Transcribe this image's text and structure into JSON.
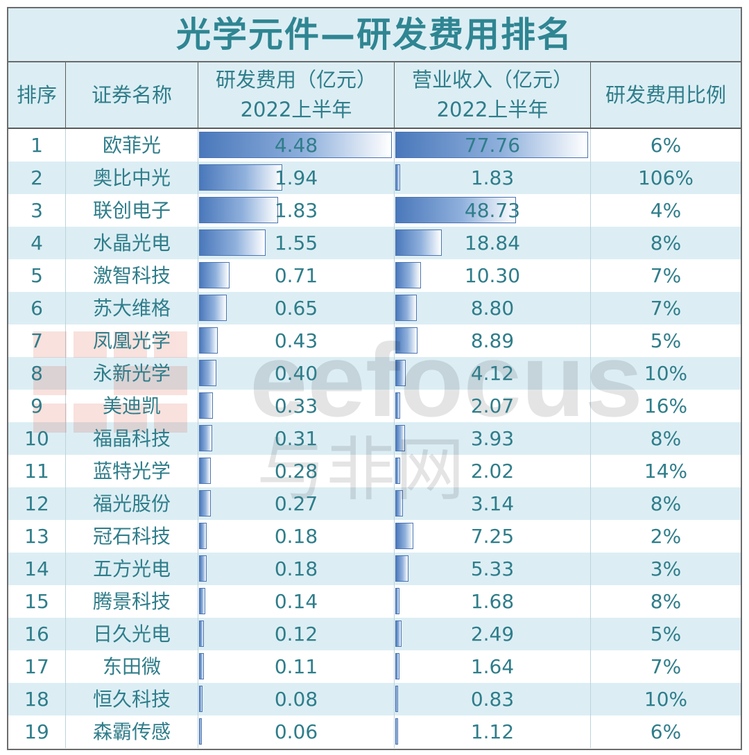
{
  "title": "光学元件—研发费用排名",
  "header": {
    "rank": "排序",
    "name": "证券名称",
    "rd_line1": "研发费用（亿元）",
    "rd_line2": "2022上半年",
    "rev_line1": "营业收入（亿元）",
    "rev_line2": "2022上半年",
    "ratio": "研发费用比例"
  },
  "rows": [
    {
      "rank": "1",
      "name": "欧菲光",
      "rd": "4.48",
      "rev": "77.76",
      "ratio": "6%"
    },
    {
      "rank": "2",
      "name": "奥比中光",
      "rd": "1.94",
      "rev": "1.83",
      "ratio": "106%"
    },
    {
      "rank": "3",
      "name": "联创电子",
      "rd": "1.83",
      "rev": "48.73",
      "ratio": "4%"
    },
    {
      "rank": "4",
      "name": "水晶光电",
      "rd": "1.55",
      "rev": "18.84",
      "ratio": "8%"
    },
    {
      "rank": "5",
      "name": "激智科技",
      "rd": "0.71",
      "rev": "10.30",
      "ratio": "7%"
    },
    {
      "rank": "6",
      "name": "苏大维格",
      "rd": "0.65",
      "rev": "8.80",
      "ratio": "7%"
    },
    {
      "rank": "7",
      "name": "凤凰光学",
      "rd": "0.43",
      "rev": "8.89",
      "ratio": "5%"
    },
    {
      "rank": "8",
      "name": "永新光学",
      "rd": "0.40",
      "rev": "4.12",
      "ratio": "10%"
    },
    {
      "rank": "9",
      "name": "美迪凯",
      "rd": "0.33",
      "rev": "2.07",
      "ratio": "16%"
    },
    {
      "rank": "10",
      "name": "福晶科技",
      "rd": "0.31",
      "rev": "3.93",
      "ratio": "8%"
    },
    {
      "rank": "11",
      "name": "蓝特光学",
      "rd": "0.28",
      "rev": "2.02",
      "ratio": "14%"
    },
    {
      "rank": "12",
      "name": "福光股份",
      "rd": "0.27",
      "rev": "3.14",
      "ratio": "8%"
    },
    {
      "rank": "13",
      "name": "冠石科技",
      "rd": "0.18",
      "rev": "7.25",
      "ratio": "2%"
    },
    {
      "rank": "14",
      "name": "五方光电",
      "rd": "0.18",
      "rev": "5.33",
      "ratio": "3%"
    },
    {
      "rank": "15",
      "name": "腾景科技",
      "rd": "0.14",
      "rev": "1.68",
      "ratio": "8%"
    },
    {
      "rank": "16",
      "name": "日久光电",
      "rd": "0.12",
      "rev": "2.49",
      "ratio": "5%"
    },
    {
      "rank": "17",
      "name": "东田微",
      "rd": "0.11",
      "rev": "1.64",
      "ratio": "7%"
    },
    {
      "rank": "18",
      "name": "恒久科技",
      "rd": "0.08",
      "rev": "0.83",
      "ratio": "10%"
    },
    {
      "rank": "19",
      "name": "森霸传感",
      "rd": "0.06",
      "rev": "1.12",
      "ratio": "6%"
    }
  ],
  "watermark": {
    "brand": "eefocus",
    "cn": "与非网"
  },
  "colors": {
    "header_bg": "#dceef4",
    "text": "#2f7d8a",
    "bar": "#4a78bb"
  }
}
